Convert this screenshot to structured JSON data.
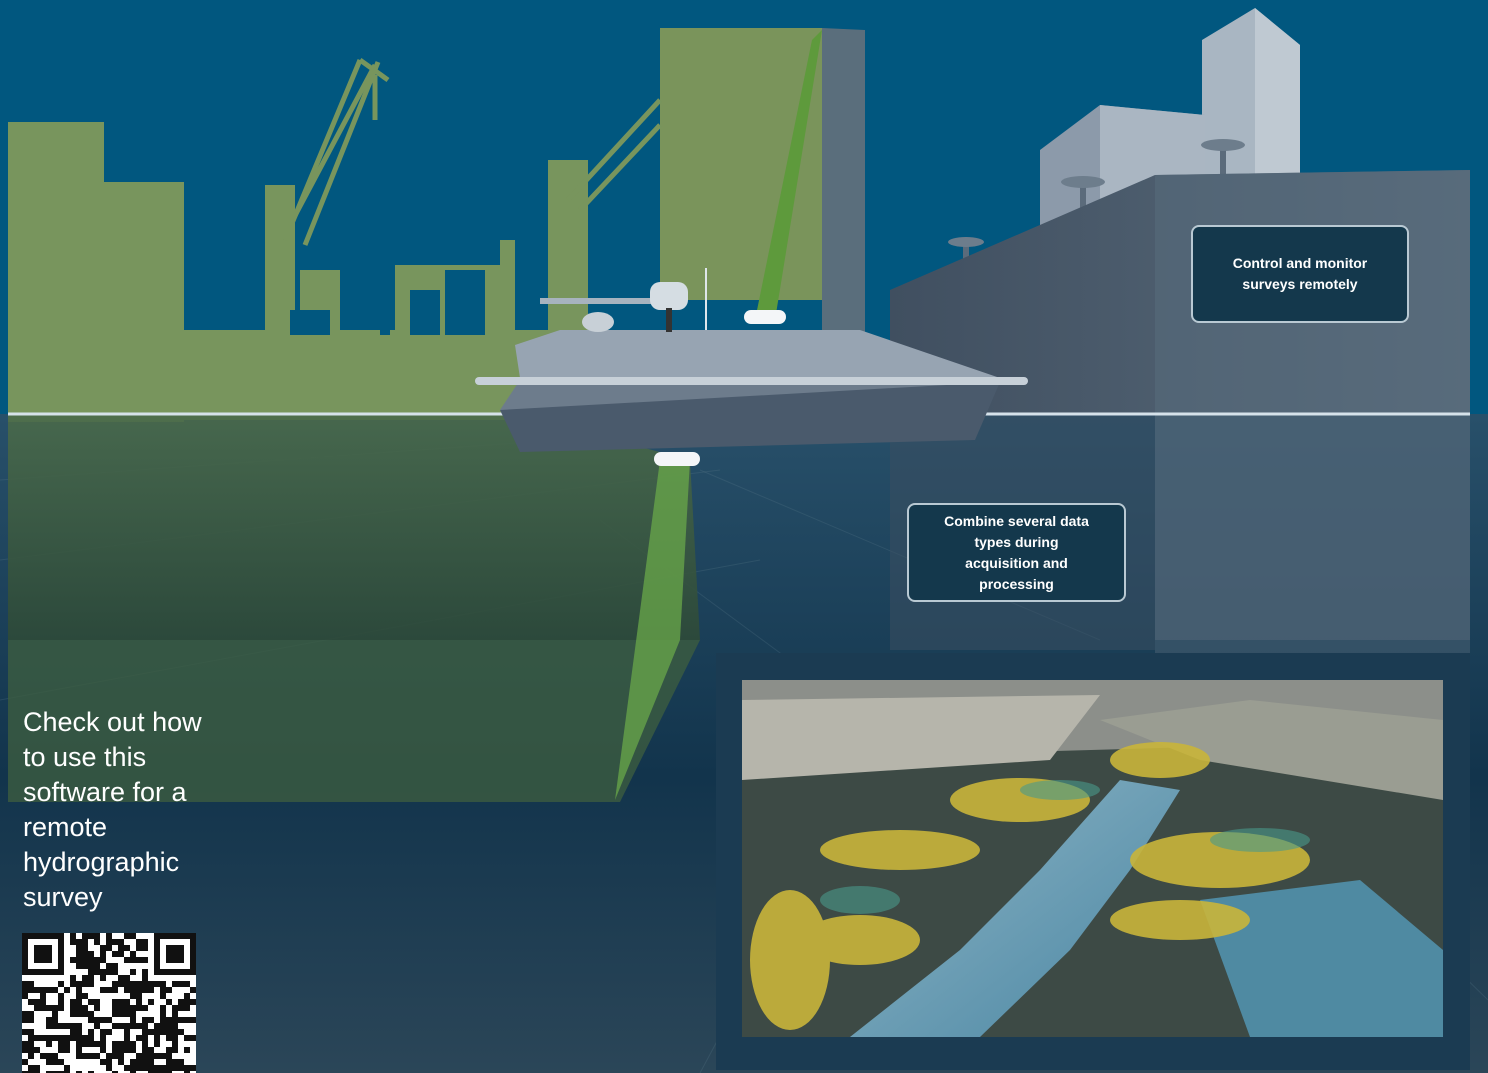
{
  "headline": "",
  "callouts": {
    "remote": "Control and monitor surveys remotely",
    "combine": "Combine several data types during acquisition and processing"
  },
  "cta": {
    "text": "Check out how to use this software for a remote hydrographic survey"
  },
  "colors": {
    "sky": "#01577f",
    "water": "#0f3550",
    "green": "#78955d",
    "building": "#3c4c5e",
    "callout_bg": "#14384c"
  },
  "icons": {
    "qr": "qr-code-icon"
  }
}
